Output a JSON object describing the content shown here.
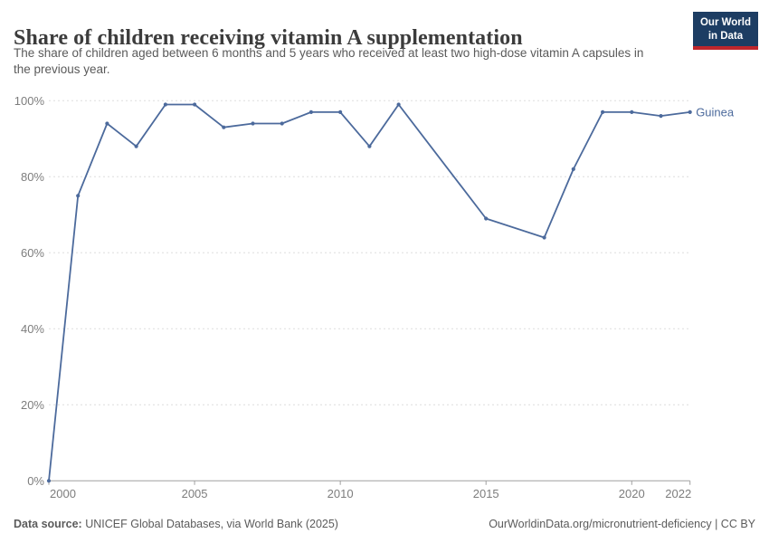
{
  "header": {
    "title": "Share of children receiving vitamin A supplementation",
    "subtitle": "The share of children aged between 6 months and 5 years who received at least two high-dose vitamin A capsules in the previous year.",
    "logo": {
      "line1": "Our World",
      "line2": "in Data",
      "bg_color": "#1d3d63",
      "accent_color": "#c0262c"
    }
  },
  "chart_data": {
    "type": "line",
    "title": "Share of children receiving vitamin A supplementation",
    "xlabel": "",
    "ylabel": "",
    "xlim": [
      2000,
      2022
    ],
    "ylim": [
      0,
      100
    ],
    "x_ticks": [
      2000,
      2005,
      2010,
      2015,
      2020,
      2022
    ],
    "y_ticks": [
      0,
      20,
      40,
      60,
      80,
      100
    ],
    "y_tick_suffix": "%",
    "grid": "horizontal-dashed",
    "legend_position": "end-of-line-label",
    "series": [
      {
        "name": "Guinea",
        "color": "#4C6A9C",
        "points": [
          [
            2000,
            0
          ],
          [
            2001,
            75
          ],
          [
            2002,
            94
          ],
          [
            2003,
            88
          ],
          [
            2004,
            99
          ],
          [
            2005,
            99
          ],
          [
            2006,
            93
          ],
          [
            2007,
            94
          ],
          [
            2008,
            94
          ],
          [
            2009,
            97
          ],
          [
            2010,
            97
          ],
          [
            2011,
            88
          ],
          [
            2012,
            99
          ],
          [
            2015,
            69
          ],
          [
            2017,
            64
          ],
          [
            2018,
            82
          ],
          [
            2019,
            97
          ],
          [
            2020,
            97
          ],
          [
            2021,
            96
          ],
          [
            2022,
            97
          ]
        ]
      }
    ]
  },
  "footer": {
    "source_label": "Data source:",
    "source_text": "UNICEF Global Databases, via World Bank (2025)",
    "right_text": "OurWorldinData.org/micronutrient-deficiency | CC BY"
  }
}
